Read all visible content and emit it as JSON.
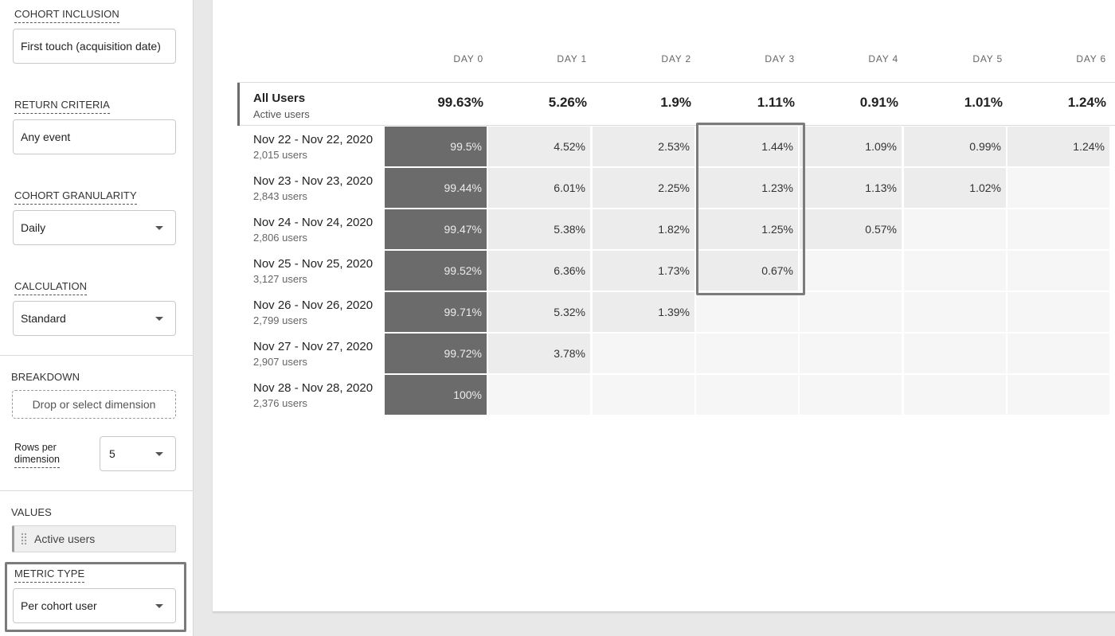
{
  "left_panel": {
    "cohort_inclusion": {
      "label": "COHORT INCLUSION",
      "value": "First touch (acquisition date)"
    },
    "return_criteria": {
      "label": "RETURN CRITERIA",
      "value": "Any event"
    },
    "cohort_granularity": {
      "label": "COHORT GRANULARITY",
      "value": "Daily"
    },
    "calculation": {
      "label": "CALCULATION",
      "value": "Standard"
    },
    "breakdown": {
      "label": "BREAKDOWN",
      "placeholder": "Drop or select dimension"
    },
    "rows_per_dimension": {
      "label_line1": "Rows per",
      "label_line2": "dimension",
      "value": "5"
    },
    "values": {
      "label": "VALUES",
      "chip": "Active users"
    },
    "metric_type": {
      "label": "METRIC TYPE",
      "value": "Per cohort user"
    }
  },
  "table": {
    "columns": [
      "DAY 0",
      "DAY 1",
      "DAY 2",
      "DAY 3",
      "DAY 4",
      "DAY 5",
      "DAY 6"
    ],
    "all_users": {
      "title": "All Users",
      "subtitle": "Active users",
      "values": [
        "99.63%",
        "5.26%",
        "1.9%",
        "1.11%",
        "0.91%",
        "1.01%",
        "1.24%"
      ]
    },
    "rows": [
      {
        "title": "Nov 22 - Nov 22, 2020",
        "users": "2,015 users",
        "values": [
          "99.5%",
          "4.52%",
          "2.53%",
          "1.44%",
          "1.09%",
          "0.99%",
          "1.24%"
        ]
      },
      {
        "title": "Nov 23 - Nov 23, 2020",
        "users": "2,843 users",
        "values": [
          "99.44%",
          "6.01%",
          "2.25%",
          "1.23%",
          "1.13%",
          "1.02%",
          ""
        ]
      },
      {
        "title": "Nov 24 - Nov 24, 2020",
        "users": "2,806 users",
        "values": [
          "99.47%",
          "5.38%",
          "1.82%",
          "1.25%",
          "0.57%",
          "",
          ""
        ]
      },
      {
        "title": "Nov 25 - Nov 25, 2020",
        "users": "3,127 users",
        "values": [
          "99.52%",
          "6.36%",
          "1.73%",
          "0.67%",
          "",
          "",
          ""
        ]
      },
      {
        "title": "Nov 26 - Nov 26, 2020",
        "users": "2,799 users",
        "values": [
          "99.71%",
          "5.32%",
          "1.39%",
          "",
          "",
          "",
          ""
        ]
      },
      {
        "title": "Nov 27 - Nov 27, 2020",
        "users": "2,907 users",
        "values": [
          "99.72%",
          "3.78%",
          "",
          "",
          "",
          "",
          ""
        ]
      },
      {
        "title": "Nov 28 - Nov 28, 2020",
        "users": "2,376 users",
        "values": [
          "100%",
          "",
          "",
          "",
          "",
          "",
          ""
        ]
      }
    ]
  },
  "colors": {
    "day0_cell": "#6b6b6b",
    "filled_cell": "#ececec",
    "empty_cell": "#f6f6f6",
    "highlight_border": "#7b7b7b"
  },
  "icons": {
    "dropdown": "chevron-down-icon",
    "drag": "drag-handle-icon"
  }
}
